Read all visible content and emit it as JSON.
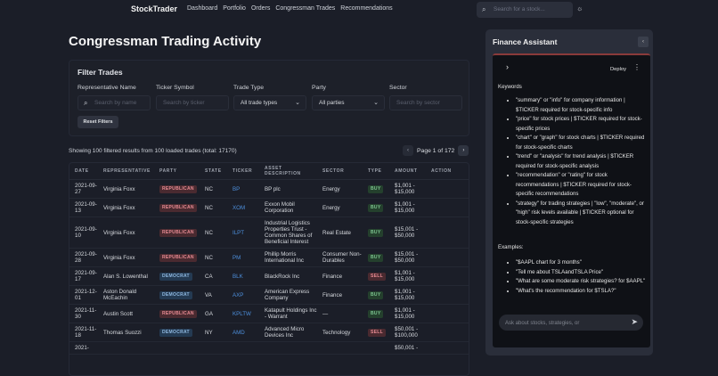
{
  "nav": {
    "brand": "StockTrader",
    "links": [
      "Dashboard",
      "Portfolio",
      "Orders",
      "Congressman Trades",
      "Recommendations"
    ],
    "search_placeholder": "Search for a stock...",
    "search_icon": "search-icon",
    "theme_icon": "sun-icon"
  },
  "page": {
    "title": "Congressman Trading Activity"
  },
  "filters": {
    "title": "Filter Trades",
    "rep_label": "Representative Name",
    "rep_placeholder": "Search by name",
    "ticker_label": "Ticker Symbol",
    "ticker_placeholder": "Search by ticker",
    "type_label": "Trade Type",
    "type_value": "All trade types",
    "party_label": "Party",
    "party_value": "All parties",
    "sector_label": "Sector",
    "sector_placeholder": "Search by sector",
    "reset": "Reset Filters"
  },
  "results": {
    "summary": "Showing 100 filtered results from 100 loaded trades (total: 17170)",
    "page": "Page 1 of 172"
  },
  "table": {
    "headers": [
      "DATE",
      "REPRESENTATIVE",
      "PARTY",
      "STATE",
      "TICKER",
      "ASSET DESCRIPTION",
      "SECTOR",
      "TYPE",
      "AMOUNT",
      "ACTION"
    ],
    "rows": [
      {
        "date": "2021-09-27",
        "rep": "Virginia Foxx",
        "party": "REPUBLICAN",
        "state": "NC",
        "ticker": "BP",
        "asset": "BP plc",
        "sector": "Energy",
        "type": "BUY",
        "amount": "$1,001 - $15,000"
      },
      {
        "date": "2021-09-13",
        "rep": "Virginia Foxx",
        "party": "REPUBLICAN",
        "state": "NC",
        "ticker": "XOM",
        "asset": "Exxon Mobil Corporation",
        "sector": "Energy",
        "type": "BUY",
        "amount": "$1,001 - $15,000"
      },
      {
        "date": "2021-09-10",
        "rep": "Virginia Foxx",
        "party": "REPUBLICAN",
        "state": "NC",
        "ticker": "ILPT",
        "asset": "Industrial Logistics Properties Trust - Common Shares of Beneficial Interest",
        "sector": "Real Estate",
        "type": "BUY",
        "amount": "$15,001 - $50,000"
      },
      {
        "date": "2021-09-28",
        "rep": "Virginia Foxx",
        "party": "REPUBLICAN",
        "state": "NC",
        "ticker": "PM",
        "asset": "Phillip Morris International Inc",
        "sector": "Consumer Non-Durables",
        "type": "BUY",
        "amount": "$15,001 - $50,000"
      },
      {
        "date": "2021-09-17",
        "rep": "Alan S. Lowenthal",
        "party": "DEMOCRAT",
        "state": "CA",
        "ticker": "BLK",
        "asset": "BlackRock Inc",
        "sector": "Finance",
        "type": "SELL",
        "amount": "$1,001 - $15,000"
      },
      {
        "date": "2021-12-01",
        "rep": "Aston Donald McEachin",
        "party": "DEMOCRAT",
        "state": "VA",
        "ticker": "AXP",
        "asset": "American Express Company",
        "sector": "Finance",
        "type": "BUY",
        "amount": "$1,001 - $15,000"
      },
      {
        "date": "2021-11-30",
        "rep": "Austin Scott",
        "party": "REPUBLICAN",
        "state": "GA",
        "ticker": "KPLTW",
        "asset": "Katapult Holdings Inc - Warrant",
        "sector": "—",
        "type": "BUY",
        "amount": "$1,001 - $15,000"
      },
      {
        "date": "2021-11-18",
        "rep": "Thomas Suozzi",
        "party": "DEMOCRAT",
        "state": "NY",
        "ticker": "AMD",
        "asset": "Advanced Micro Devices Inc",
        "sector": "Technology",
        "type": "SELL",
        "amount": "$50,001 - $100,000"
      },
      {
        "date": "2021-",
        "rep": "",
        "party": "",
        "state": "",
        "ticker": "",
        "asset": "",
        "sector": "",
        "type": "",
        "amount": "$50,001 -"
      }
    ]
  },
  "assistant": {
    "title": "Finance Assistant",
    "deploy": "Deploy",
    "keywords_title": "Keywords",
    "keywords": [
      "\"summary\" or \"info\" for company information | $TICKER required for stock-specific info",
      "\"price\" for stock prices | $TICKER required for stock-specific prices",
      "\"chart\" or \"graph\" for stock charts | $TICKER required for stock-specific charts",
      "\"trend\" or \"analysis\" for trend analysis | $TICKER required for stock-specific analysis",
      "\"recommendation\" or \"rating\" for stock recommendations | $TICKER required for stock-specific recommendations",
      "\"strategy\" for trading strategies | \"low\", \"moderate\", or \"high\" risk levels available | $TICKER optional for stock-specific strategies"
    ],
    "examples_title": "Examples:",
    "examples": [
      "\"$AAPL chart for 3 months\"",
      "\"Tell me about TSLAandTSLA Price\"",
      "\"What are some moderate risk strategies? for $AAPL\"",
      "\"What's the recommendation for $TSLA?\""
    ],
    "chat_placeholder": "Ask about stocks, strategies, or"
  },
  "colors": {
    "background": "#1b1e28",
    "republican": "#e88b93",
    "democrat": "#8fb8e0",
    "buy": "#7cc48f",
    "ticker": "#4d8fdc"
  }
}
